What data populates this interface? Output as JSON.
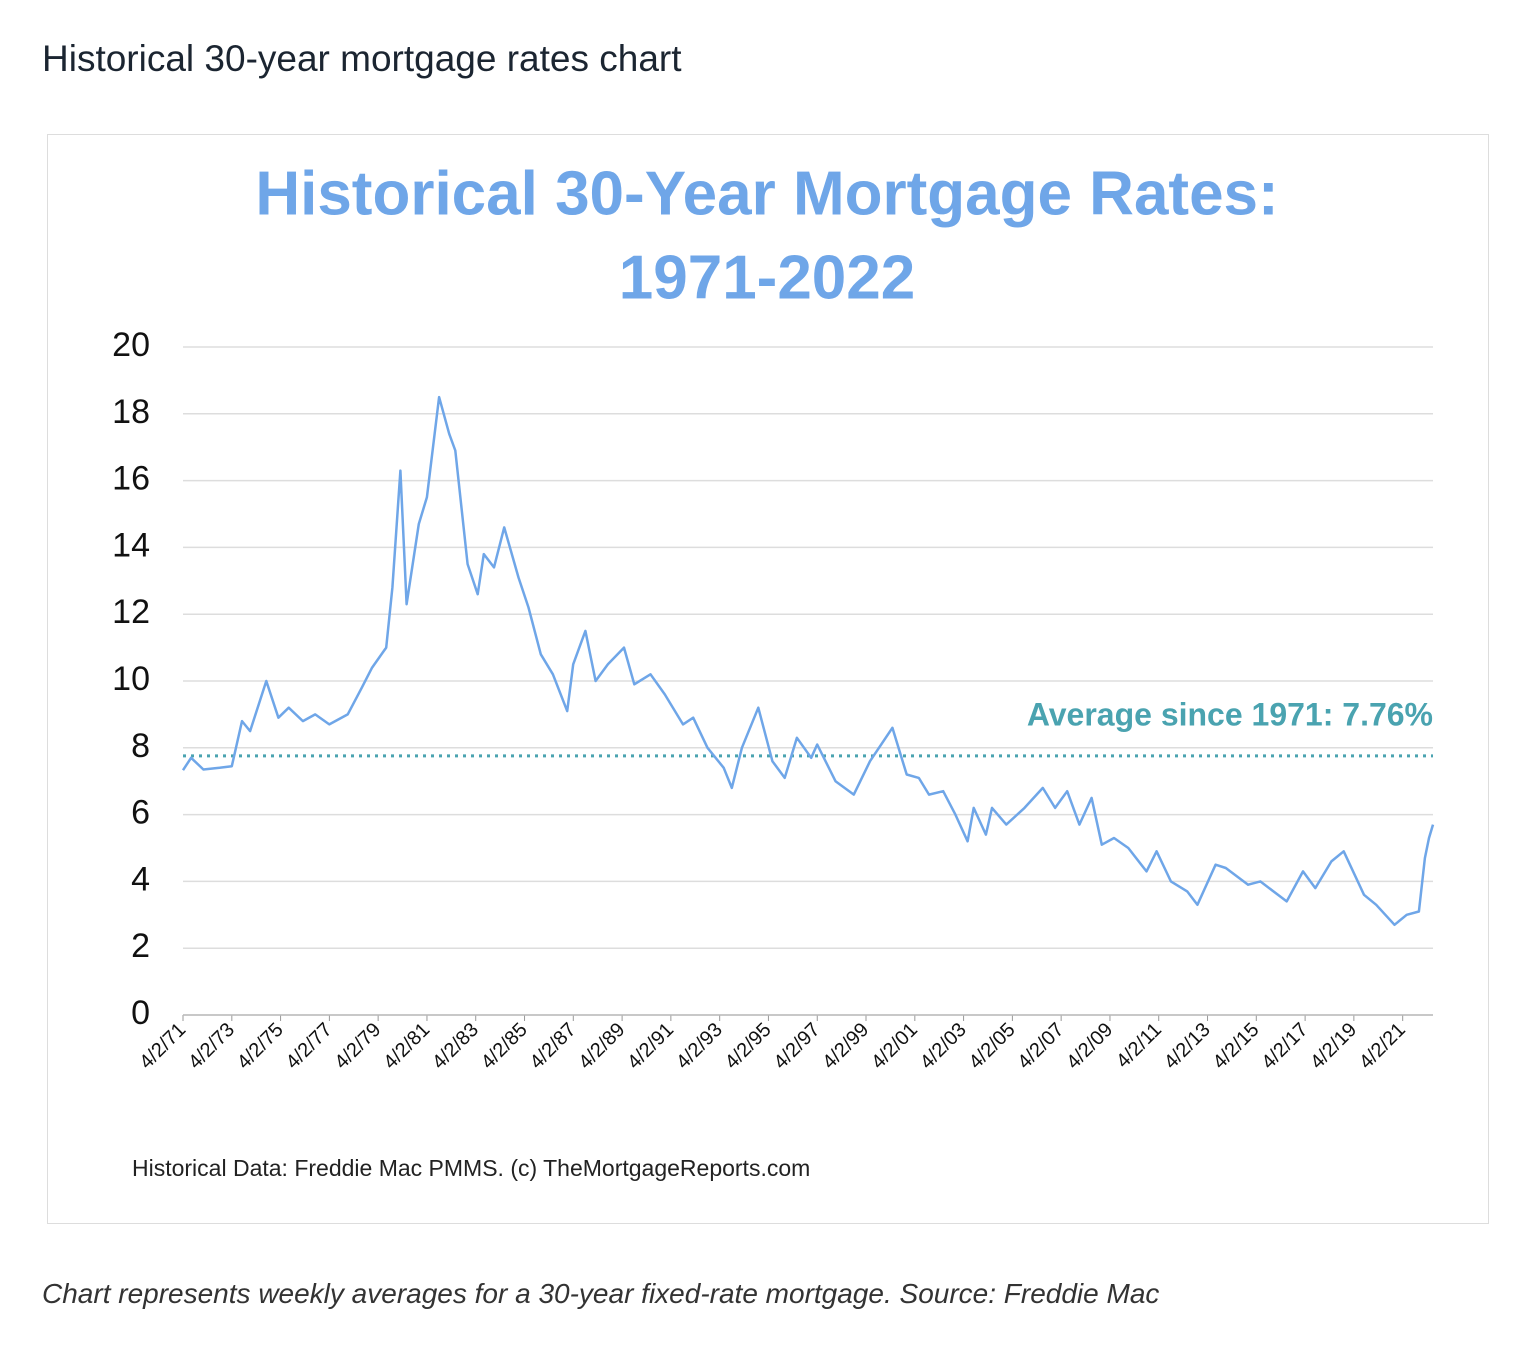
{
  "heading": "Historical 30-year mortgage rates chart",
  "caption": "Chart represents weekly averages for a 30-year fixed-rate mortgage. Source: Freddie Mac",
  "chart_data": {
    "type": "line",
    "title": [
      "Historical 30-Year Mortgage Rates:",
      "1971-2022"
    ],
    "source": "Historical Data: Freddie Mac PMMS. (c) TheMortgageReports.com",
    "color": "#6fa6e8",
    "x": [
      "1971-04-02",
      "1971-08-01",
      "1972-02-01",
      "1972-10-01",
      "1973-04-01",
      "1973-09-01",
      "1974-01-01",
      "1974-09-01",
      "1975-03-01",
      "1975-08-01",
      "1976-03-01",
      "1976-09-01",
      "1977-04-01",
      "1978-01-01",
      "1978-08-01",
      "1979-01-01",
      "1979-08-01",
      "1979-11-01",
      "1980-03-01",
      "1980-06-01",
      "1980-12-01",
      "1981-04-01",
      "1981-10-01",
      "1982-03-01",
      "1982-06-01",
      "1982-12-01",
      "1983-05-01",
      "1983-08-01",
      "1984-01-01",
      "1984-06-01",
      "1985-01-01",
      "1985-06-01",
      "1985-12-01",
      "1986-06-01",
      "1987-01-01",
      "1987-04-01",
      "1987-10-01",
      "1988-03-01",
      "1988-09-01",
      "1989-05-01",
      "1989-10-01",
      "1990-06-01",
      "1991-01-01",
      "1991-10-01",
      "1992-03-01",
      "1992-10-01",
      "1993-06-01",
      "1993-10-01",
      "1994-03-01",
      "1994-11-01",
      "1995-06-01",
      "1995-12-01",
      "1996-06-01",
      "1997-01-01",
      "1997-04-01",
      "1998-01-01",
      "1998-10-01",
      "1999-06-01",
      "2000-05-01",
      "2000-12-01",
      "2001-06-01",
      "2001-11-01",
      "2002-06-01",
      "2002-12-01",
      "2003-06-01",
      "2003-09-01",
      "2004-03-01",
      "2004-06-01",
      "2005-01-01",
      "2005-10-01",
      "2006-07-01",
      "2007-01-01",
      "2007-07-01",
      "2008-01-01",
      "2008-07-01",
      "2008-12-01",
      "2009-06-01",
      "2010-01-01",
      "2010-10-01",
      "2011-03-01",
      "2011-10-01",
      "2012-06-01",
      "2012-11-01",
      "2013-08-01",
      "2014-01-01",
      "2014-12-01",
      "2015-06-01",
      "2016-07-01",
      "2017-03-01",
      "2017-09-01",
      "2018-05-01",
      "2018-11-01",
      "2019-09-01",
      "2020-03-01",
      "2020-12-01",
      "2021-06-01",
      "2021-12-01",
      "2022-03-01",
      "2022-05-01",
      "2022-06-30"
    ],
    "values": [
      7.33,
      7.7,
      7.35,
      7.4,
      7.45,
      8.8,
      8.5,
      10.0,
      8.9,
      9.2,
      8.8,
      9.0,
      8.7,
      9.0,
      9.8,
      10.4,
      11.0,
      12.8,
      16.3,
      12.3,
      14.7,
      15.5,
      18.5,
      17.4,
      16.9,
      13.5,
      12.6,
      13.8,
      13.4,
      14.6,
      13.1,
      12.2,
      10.8,
      10.2,
      9.1,
      10.5,
      11.5,
      10.0,
      10.5,
      11.0,
      9.9,
      10.2,
      9.6,
      8.7,
      8.9,
      8.0,
      7.4,
      6.8,
      8.0,
      9.2,
      7.6,
      7.1,
      8.3,
      7.7,
      8.1,
      7.0,
      6.6,
      7.6,
      8.6,
      7.2,
      7.1,
      6.6,
      6.7,
      6.0,
      5.2,
      6.2,
      5.4,
      6.2,
      5.7,
      6.2,
      6.8,
      6.2,
      6.7,
      5.7,
      6.5,
      5.1,
      5.3,
      5.0,
      4.3,
      4.9,
      4.0,
      3.7,
      3.3,
      4.5,
      4.4,
      3.9,
      4.0,
      3.4,
      4.3,
      3.8,
      4.6,
      4.9,
      3.6,
      3.3,
      2.7,
      3.0,
      3.1,
      4.7,
      5.3,
      5.7
    ],
    "average": {
      "value": 7.76,
      "label": "Average since 1971: 7.76%",
      "color": "#4aa3b0"
    },
    "xlim": [
      "1971-04-02",
      "2022-06-30"
    ],
    "xticks": [
      {
        "value": "1971-04-02",
        "label": "4/2/71"
      },
      {
        "value": "1973-04-02",
        "label": "4/2/73"
      },
      {
        "value": "1975-04-02",
        "label": "4/2/75"
      },
      {
        "value": "1977-04-02",
        "label": "4/2/77"
      },
      {
        "value": "1979-04-02",
        "label": "4/2/79"
      },
      {
        "value": "1981-04-02",
        "label": "4/2/81"
      },
      {
        "value": "1983-04-02",
        "label": "4/2/83"
      },
      {
        "value": "1985-04-02",
        "label": "4/2/85"
      },
      {
        "value": "1987-04-02",
        "label": "4/2/87"
      },
      {
        "value": "1989-04-02",
        "label": "4/2/89"
      },
      {
        "value": "1991-04-02",
        "label": "4/2/91"
      },
      {
        "value": "1993-04-02",
        "label": "4/2/93"
      },
      {
        "value": "1995-04-02",
        "label": "4/2/95"
      },
      {
        "value": "1997-04-02",
        "label": "4/2/97"
      },
      {
        "value": "1999-04-02",
        "label": "4/2/99"
      },
      {
        "value": "2001-04-02",
        "label": "4/2/01"
      },
      {
        "value": "2003-04-02",
        "label": "4/2/03"
      },
      {
        "value": "2005-04-02",
        "label": "4/2/05"
      },
      {
        "value": "2007-04-02",
        "label": "4/2/07"
      },
      {
        "value": "2009-04-02",
        "label": "4/2/09"
      },
      {
        "value": "2011-04-02",
        "label": "4/2/11"
      },
      {
        "value": "2013-04-02",
        "label": "4/2/13"
      },
      {
        "value": "2015-04-02",
        "label": "4/2/15"
      },
      {
        "value": "2017-04-02",
        "label": "4/2/17"
      },
      {
        "value": "2019-04-02",
        "label": "4/2/19"
      },
      {
        "value": "2021-04-02",
        "label": "4/2/21"
      }
    ],
    "ylim": [
      0,
      20
    ],
    "yticks": [
      0,
      2,
      4,
      6,
      8,
      10,
      12,
      14,
      16,
      18,
      20
    ],
    "grid": true
  }
}
